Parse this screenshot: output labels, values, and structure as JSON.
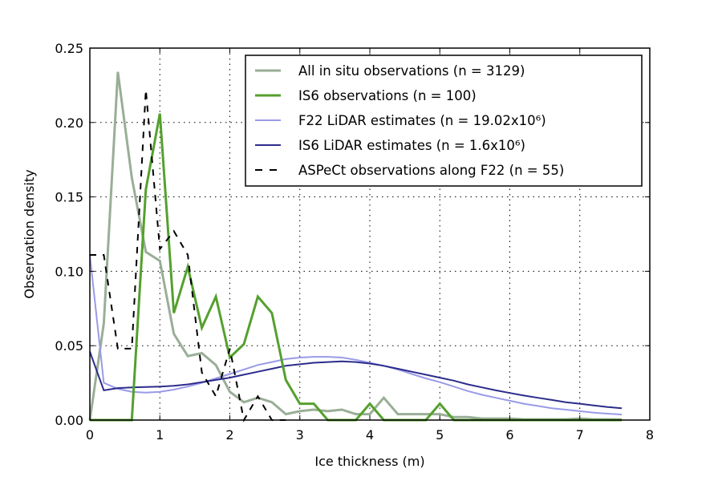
{
  "chart_data": {
    "type": "line",
    "title": "",
    "xlabel": "Ice thickness (m)",
    "ylabel": "Observation density",
    "xlim": [
      0,
      8
    ],
    "ylim": [
      0,
      0.25
    ],
    "grid": true,
    "legend_position": "top-right",
    "xticks": [
      "0",
      "1",
      "2",
      "3",
      "4",
      "5",
      "6",
      "7",
      "8"
    ],
    "yticks": [
      "0.00",
      "0.05",
      "0.10",
      "0.15",
      "0.20",
      "0.25"
    ],
    "series": [
      {
        "name": "All in situ observations (n = 3129)",
        "color": "#9aae97",
        "width": 3,
        "dash": "",
        "x": [
          0,
          0.2,
          0.4,
          0.6,
          0.8,
          1.0,
          1.2,
          1.4,
          1.6,
          1.8,
          2.0,
          2.2,
          2.4,
          2.6,
          2.8,
          3.0,
          3.2,
          3.4,
          3.6,
          3.8,
          4.0,
          4.2,
          4.4,
          4.6,
          4.8,
          5.0,
          5.2,
          5.4,
          5.6,
          5.8,
          6.0,
          6.2,
          6.4,
          6.6,
          6.8,
          7.0,
          7.2,
          7.4,
          7.6
        ],
        "y": [
          0,
          0.065,
          0.234,
          0.163,
          0.113,
          0.107,
          0.058,
          0.043,
          0.045,
          0.037,
          0.019,
          0.012,
          0.015,
          0.012,
          0.004,
          0.006,
          0.007,
          0.006,
          0.007,
          0.004,
          0.004,
          0.015,
          0.004,
          0.004,
          0.004,
          0.004,
          0.002,
          0.002,
          0.001,
          0.001,
          0.001,
          0.0005,
          0.0005,
          0.0005,
          0.0005,
          0.001,
          0.0005,
          0.0005,
          0.0003
        ]
      },
      {
        "name": "IS6 observations (n = 100)",
        "color": "#55a02e",
        "width": 3,
        "dash": "",
        "x": [
          0,
          0.2,
          0.4,
          0.6,
          0.8,
          1.0,
          1.2,
          1.4,
          1.6,
          1.8,
          2.0,
          2.2,
          2.4,
          2.6,
          2.8,
          3.0,
          3.2,
          3.4,
          3.6,
          3.8,
          4.0,
          4.2,
          4.4,
          4.6,
          4.8,
          5.0,
          5.2,
          5.4,
          5.6,
          5.8,
          6.0,
          6.2,
          6.4,
          6.6,
          6.8,
          7.0,
          7.2,
          7.4,
          7.6
        ],
        "y": [
          0,
          0,
          0,
          0,
          0.155,
          0.206,
          0.072,
          0.103,
          0.062,
          0.083,
          0.042,
          0.051,
          0.083,
          0.072,
          0.027,
          0.011,
          0.011,
          0,
          0,
          0,
          0.011,
          0,
          0,
          0,
          0,
          0.011,
          0,
          0,
          0,
          0,
          0,
          0,
          0,
          0,
          0,
          0,
          0,
          0,
          0
        ]
      },
      {
        "name": "F22 LiDAR estimates (n = 19.02x10⁶)",
        "color": "#9a9ae8",
        "width": 2,
        "dash": "",
        "x": [
          0,
          0.2,
          0.4,
          0.6,
          0.8,
          1.0,
          1.2,
          1.4,
          1.6,
          1.8,
          2.0,
          2.2,
          2.4,
          2.6,
          2.8,
          3.0,
          3.2,
          3.4,
          3.6,
          3.8,
          4.0,
          4.2,
          4.4,
          4.6,
          4.8,
          5.0,
          5.2,
          5.4,
          5.6,
          5.8,
          6.0,
          6.2,
          6.4,
          6.6,
          6.8,
          7.0,
          7.2,
          7.4,
          7.6
        ],
        "y": [
          0.111,
          0.025,
          0.021,
          0.019,
          0.0185,
          0.019,
          0.0205,
          0.0225,
          0.025,
          0.028,
          0.031,
          0.034,
          0.037,
          0.039,
          0.041,
          0.042,
          0.0425,
          0.0425,
          0.042,
          0.0405,
          0.0385,
          0.0365,
          0.034,
          0.031,
          0.028,
          0.0255,
          0.0225,
          0.0195,
          0.017,
          0.015,
          0.013,
          0.011,
          0.0095,
          0.008,
          0.007,
          0.006,
          0.005,
          0.0043,
          0.0037
        ]
      },
      {
        "name": "IS6 LiDAR estimates (n = 1.6x10⁶)",
        "color": "#2c2c8c",
        "width": 2,
        "dash": "",
        "x": [
          0,
          0.2,
          0.4,
          0.6,
          0.8,
          1.0,
          1.2,
          1.4,
          1.6,
          1.8,
          2.0,
          2.2,
          2.4,
          2.6,
          2.8,
          3.0,
          3.2,
          3.4,
          3.6,
          3.8,
          4.0,
          4.2,
          4.4,
          4.6,
          4.8,
          5.0,
          5.2,
          5.4,
          5.6,
          5.8,
          6.0,
          6.2,
          6.4,
          6.6,
          6.8,
          7.0,
          7.2,
          7.4,
          7.6
        ],
        "y": [
          0.046,
          0.02,
          0.0215,
          0.022,
          0.0222,
          0.0225,
          0.023,
          0.024,
          0.0255,
          0.027,
          0.0285,
          0.0305,
          0.0325,
          0.0345,
          0.0365,
          0.0375,
          0.0385,
          0.039,
          0.0395,
          0.039,
          0.038,
          0.0365,
          0.0345,
          0.0325,
          0.0305,
          0.0285,
          0.0265,
          0.024,
          0.022,
          0.02,
          0.0182,
          0.0165,
          0.015,
          0.0135,
          0.012,
          0.011,
          0.0098,
          0.0088,
          0.008
        ]
      },
      {
        "name": "ASPeCt observations along F22 (n = 55)",
        "color": "#000000",
        "width": 2,
        "dash": "8,8",
        "x": [
          0,
          0.2,
          0.4,
          0.6,
          0.8,
          1.0,
          1.2,
          1.4,
          1.6,
          1.8,
          2.0,
          2.2,
          2.4,
          2.6,
          2.8
        ],
        "y": [
          0.111,
          0.111,
          0.048,
          0.048,
          0.222,
          0.115,
          0.127,
          0.111,
          0.032,
          0.016,
          0.048,
          0,
          0.016,
          0,
          0
        ]
      }
    ]
  }
}
